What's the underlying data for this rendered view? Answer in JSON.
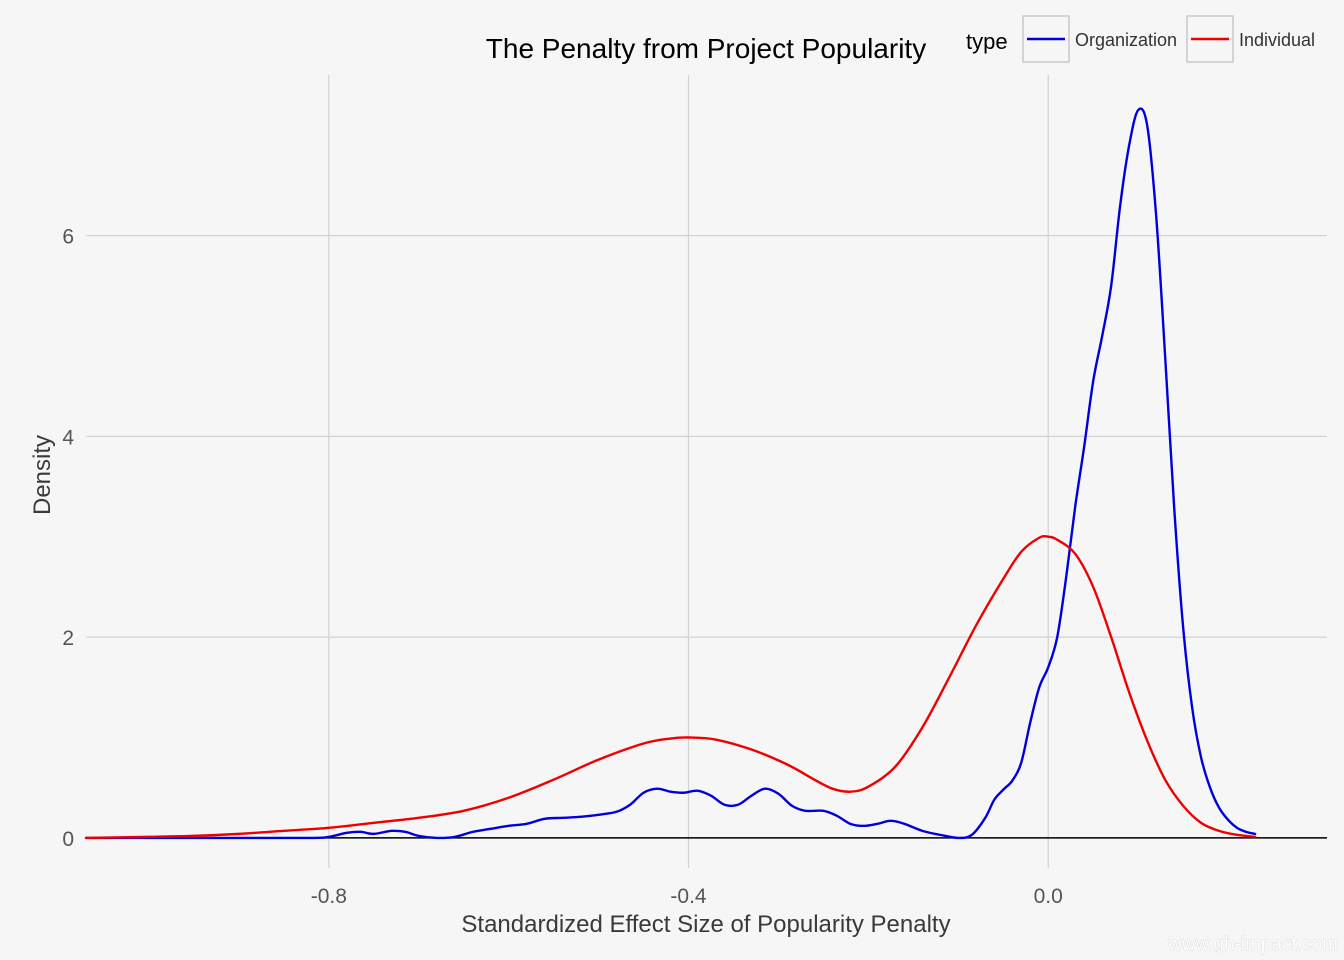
{
  "watermark": "www.gh-impact.com",
  "chart_data": {
    "type": "line",
    "title": "The Penalty from Project Popularity",
    "xlabel": "Standardized Effect Size of Popularity Penalty",
    "ylabel": "Density",
    "xlim": [
      -1.07,
      0.31
    ],
    "ylim": [
      -0.3,
      7.6
    ],
    "x_ticks": [
      -0.8,
      -0.4,
      0.0
    ],
    "x_tick_labels": [
      "-0.8",
      "-0.4",
      "0.0"
    ],
    "y_ticks": [
      0,
      2,
      4,
      6
    ],
    "y_tick_labels": [
      "0",
      "2",
      "4",
      "6"
    ],
    "grid": true,
    "legend": {
      "title": "type",
      "position": "top-right"
    },
    "series": [
      {
        "name": "Organization",
        "color": "#0000dd",
        "points": [
          [
            -1.07,
            0.0
          ],
          [
            -0.9,
            0.0
          ],
          [
            -0.82,
            0.0
          ],
          [
            -0.8,
            0.01
          ],
          [
            -0.78,
            0.05
          ],
          [
            -0.765,
            0.06
          ],
          [
            -0.75,
            0.04
          ],
          [
            -0.73,
            0.07
          ],
          [
            -0.715,
            0.06
          ],
          [
            -0.7,
            0.02
          ],
          [
            -0.68,
            0.0
          ],
          [
            -0.66,
            0.01
          ],
          [
            -0.64,
            0.06
          ],
          [
            -0.62,
            0.09
          ],
          [
            -0.6,
            0.12
          ],
          [
            -0.58,
            0.14
          ],
          [
            -0.56,
            0.19
          ],
          [
            -0.54,
            0.2
          ],
          [
            -0.52,
            0.21
          ],
          [
            -0.5,
            0.23
          ],
          [
            -0.48,
            0.26
          ],
          [
            -0.465,
            0.33
          ],
          [
            -0.45,
            0.45
          ],
          [
            -0.435,
            0.49
          ],
          [
            -0.42,
            0.46
          ],
          [
            -0.405,
            0.45
          ],
          [
            -0.39,
            0.47
          ],
          [
            -0.375,
            0.42
          ],
          [
            -0.36,
            0.33
          ],
          [
            -0.345,
            0.33
          ],
          [
            -0.33,
            0.42
          ],
          [
            -0.315,
            0.49
          ],
          [
            -0.3,
            0.44
          ],
          [
            -0.285,
            0.32
          ],
          [
            -0.27,
            0.27
          ],
          [
            -0.25,
            0.27
          ],
          [
            -0.235,
            0.22
          ],
          [
            -0.22,
            0.14
          ],
          [
            -0.205,
            0.12
          ],
          [
            -0.19,
            0.14
          ],
          [
            -0.175,
            0.17
          ],
          [
            -0.16,
            0.14
          ],
          [
            -0.14,
            0.07
          ],
          [
            -0.12,
            0.03
          ],
          [
            -0.1,
            0.0
          ],
          [
            -0.085,
            0.03
          ],
          [
            -0.07,
            0.2
          ],
          [
            -0.06,
            0.38
          ],
          [
            -0.05,
            0.48
          ],
          [
            -0.04,
            0.57
          ],
          [
            -0.03,
            0.75
          ],
          [
            -0.02,
            1.15
          ],
          [
            -0.01,
            1.5
          ],
          [
            0.0,
            1.7
          ],
          [
            0.01,
            2.0
          ],
          [
            0.02,
            2.6
          ],
          [
            0.03,
            3.3
          ],
          [
            0.04,
            3.9
          ],
          [
            0.05,
            4.55
          ],
          [
            0.06,
            5.0
          ],
          [
            0.07,
            5.5
          ],
          [
            0.08,
            6.3
          ],
          [
            0.09,
            6.9
          ],
          [
            0.1,
            7.25
          ],
          [
            0.11,
            7.1
          ],
          [
            0.12,
            6.2
          ],
          [
            0.13,
            4.8
          ],
          [
            0.14,
            3.3
          ],
          [
            0.15,
            2.1
          ],
          [
            0.16,
            1.3
          ],
          [
            0.17,
            0.8
          ],
          [
            0.18,
            0.5
          ],
          [
            0.19,
            0.3
          ],
          [
            0.2,
            0.18
          ],
          [
            0.21,
            0.1
          ],
          [
            0.22,
            0.06
          ],
          [
            0.23,
            0.04
          ]
        ]
      },
      {
        "name": "Individual",
        "color": "#ee0000",
        "points": [
          [
            -1.07,
            0.0
          ],
          [
            -1.0,
            0.01
          ],
          [
            -0.95,
            0.02
          ],
          [
            -0.9,
            0.04
          ],
          [
            -0.85,
            0.07
          ],
          [
            -0.8,
            0.1
          ],
          [
            -0.75,
            0.15
          ],
          [
            -0.7,
            0.2
          ],
          [
            -0.65,
            0.27
          ],
          [
            -0.6,
            0.4
          ],
          [
            -0.55,
            0.58
          ],
          [
            -0.5,
            0.78
          ],
          [
            -0.45,
            0.94
          ],
          [
            -0.42,
            0.99
          ],
          [
            -0.4,
            1.0
          ],
          [
            -0.37,
            0.98
          ],
          [
            -0.33,
            0.88
          ],
          [
            -0.29,
            0.73
          ],
          [
            -0.26,
            0.58
          ],
          [
            -0.24,
            0.49
          ],
          [
            -0.22,
            0.46
          ],
          [
            -0.2,
            0.51
          ],
          [
            -0.17,
            0.71
          ],
          [
            -0.14,
            1.1
          ],
          [
            -0.11,
            1.6
          ],
          [
            -0.08,
            2.12
          ],
          [
            -0.05,
            2.58
          ],
          [
            -0.03,
            2.85
          ],
          [
            -0.01,
            2.99
          ],
          [
            0.0,
            3.0
          ],
          [
            0.01,
            2.97
          ],
          [
            0.03,
            2.83
          ],
          [
            0.05,
            2.5
          ],
          [
            0.07,
            2.0
          ],
          [
            0.09,
            1.45
          ],
          [
            0.11,
            0.97
          ],
          [
            0.13,
            0.58
          ],
          [
            0.15,
            0.32
          ],
          [
            0.17,
            0.15
          ],
          [
            0.19,
            0.07
          ],
          [
            0.21,
            0.03
          ],
          [
            0.23,
            0.01
          ]
        ]
      }
    ]
  }
}
